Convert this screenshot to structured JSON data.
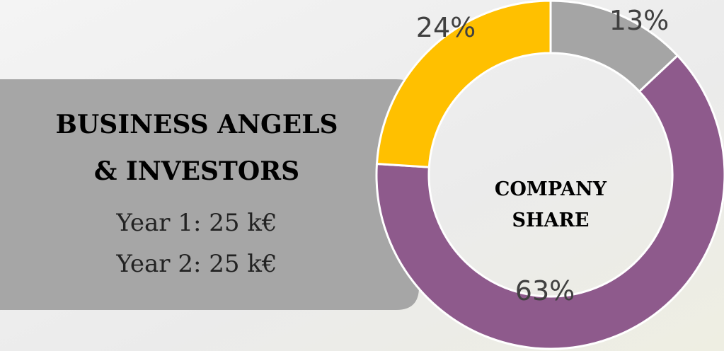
{
  "panel": {
    "title_lines": [
      "BUSINESS ANGELS",
      "& INVESTORS"
    ],
    "lines": [
      "Year 1: 25 k€",
      "Year 2: 25 k€"
    ]
  },
  "chart_data": {
    "type": "donut",
    "center_label": [
      "COMPANY",
      "SHARE"
    ],
    "values": [
      13,
      63,
      24
    ],
    "value_labels": [
      "13%",
      "63%",
      "24%"
    ],
    "colors": [
      "#a5a5a5",
      "#8e5a8c",
      "#ffc000"
    ]
  }
}
